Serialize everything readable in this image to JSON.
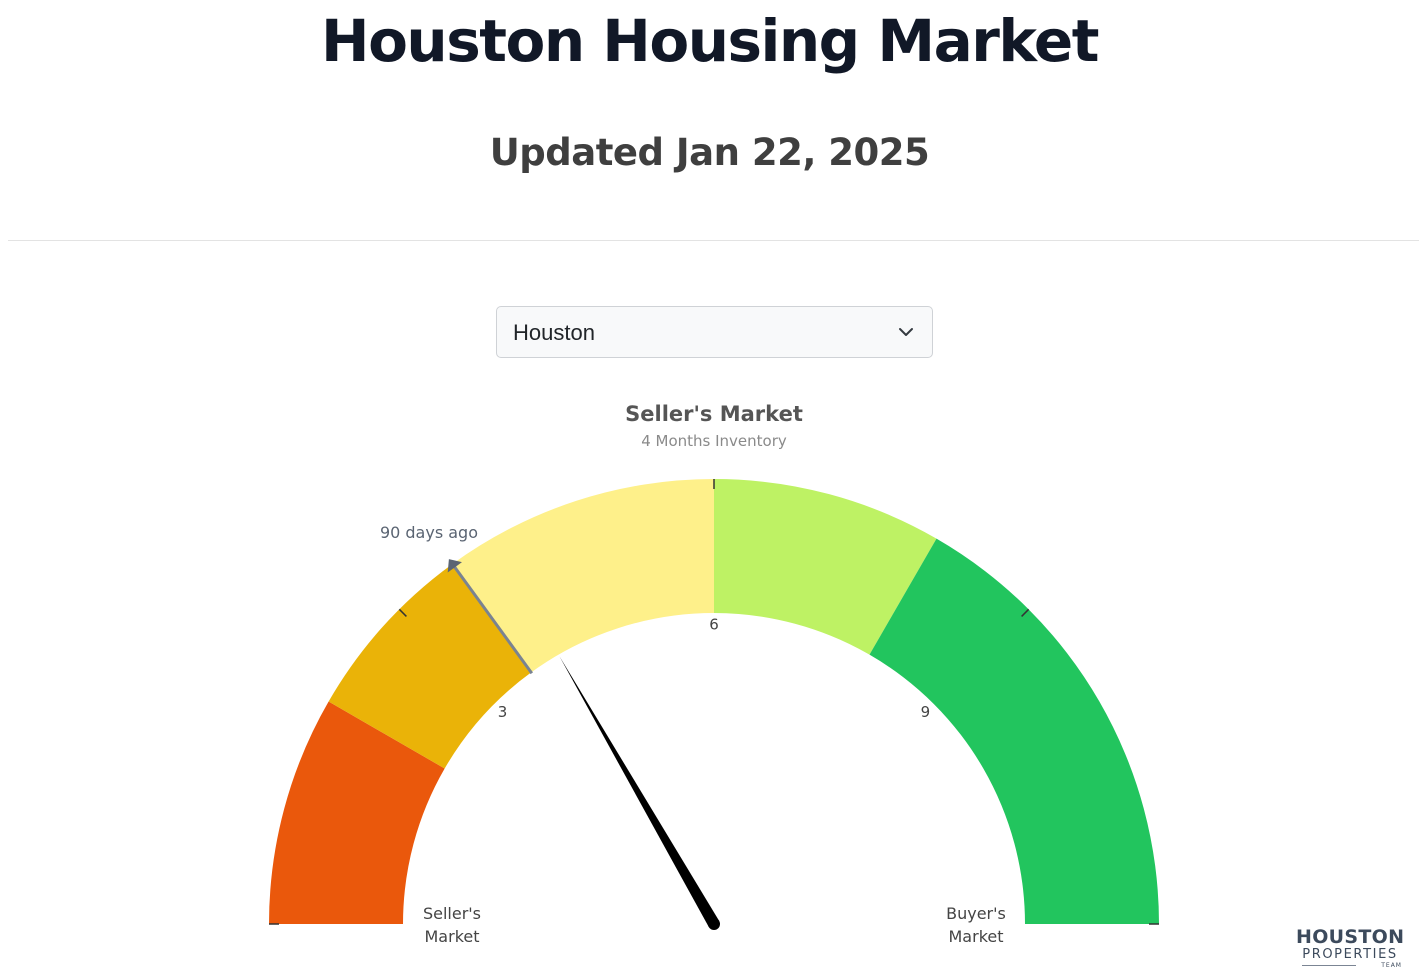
{
  "header": {
    "title": "Houston Housing Market",
    "subtitle": "Updated Jan 22, 2025"
  },
  "market_select": {
    "selected": "Houston",
    "icon": "chevron-down-icon"
  },
  "chart_data": {
    "type": "gauge",
    "title": "Seller's Market",
    "subtitle": "4 Months Inventory",
    "min": 0,
    "max": 12,
    "value": 4,
    "reference": {
      "label": "90 days ago",
      "value": 3.6
    },
    "bands": [
      {
        "from": 0,
        "to": 2,
        "color": "#ea580c"
      },
      {
        "from": 2,
        "to": 3.6,
        "color": "#eab308"
      },
      {
        "from": 3.6,
        "to": 6,
        "color": "#fef08a"
      },
      {
        "from": 6,
        "to": 8,
        "color": "#bef264"
      },
      {
        "from": 8,
        "to": 12,
        "color": "#22c55e"
      }
    ],
    "ticks": [
      0,
      3,
      6,
      9,
      12
    ],
    "tick_labels": [
      {
        "value": 3,
        "text": "3"
      },
      {
        "value": 6,
        "text": "6"
      },
      {
        "value": 9,
        "text": "9"
      }
    ],
    "end_labels": {
      "left": [
        "Seller's",
        "Market"
      ],
      "right": [
        "Buyer's",
        "Market"
      ]
    }
  },
  "logo": {
    "line1": "HOUSTON",
    "line2": "PROPERTIES",
    "line3": "TEAM"
  }
}
